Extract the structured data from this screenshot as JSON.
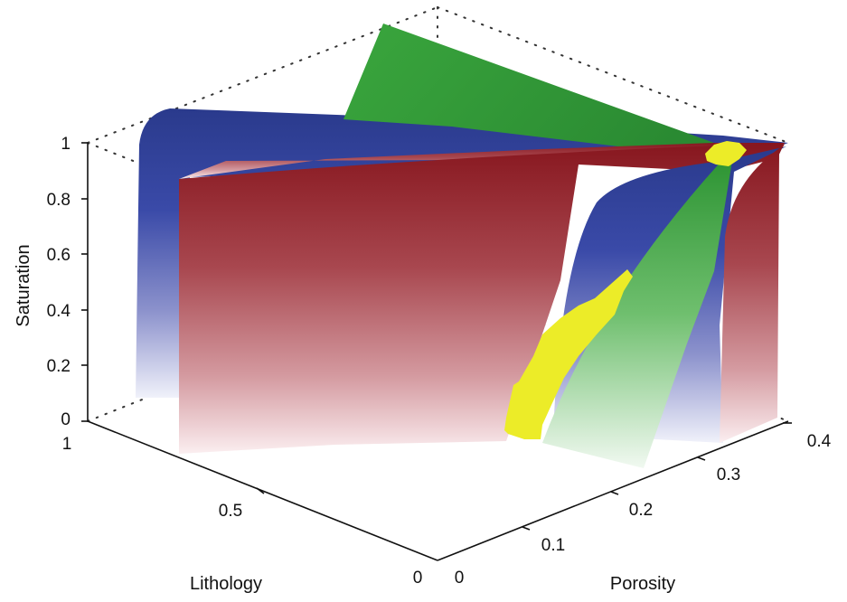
{
  "chart_data": {
    "type": "surface3d",
    "title": "",
    "axes": {
      "saturation": {
        "label": "Saturation",
        "range": [
          0,
          1
        ],
        "ticks": [
          "0",
          "0.2",
          "0.4",
          "0.6",
          "0.8",
          "1"
        ]
      },
      "lithology": {
        "label": "Lithology",
        "range": [
          0,
          1
        ],
        "ticks": [
          "0",
          "0.5",
          "1"
        ]
      },
      "porosity": {
        "label": "Porosity",
        "range": [
          0,
          0.4
        ],
        "ticks": [
          "0",
          "0.1",
          "0.2",
          "0.3",
          "0.4"
        ]
      }
    },
    "grid": "dotted box edges",
    "surfaces": [
      {
        "color": "#2d3c8e",
        "fade_to": "#f0f1fa",
        "description_color": "blue"
      },
      {
        "color": "#8b1a22",
        "fade_to": "#fbf0f1",
        "description_color": "red"
      },
      {
        "color": "#2f9a35",
        "fade_to": "#f1f9f1",
        "description_color": "green"
      }
    ],
    "highlight_color": "#ecec28"
  }
}
